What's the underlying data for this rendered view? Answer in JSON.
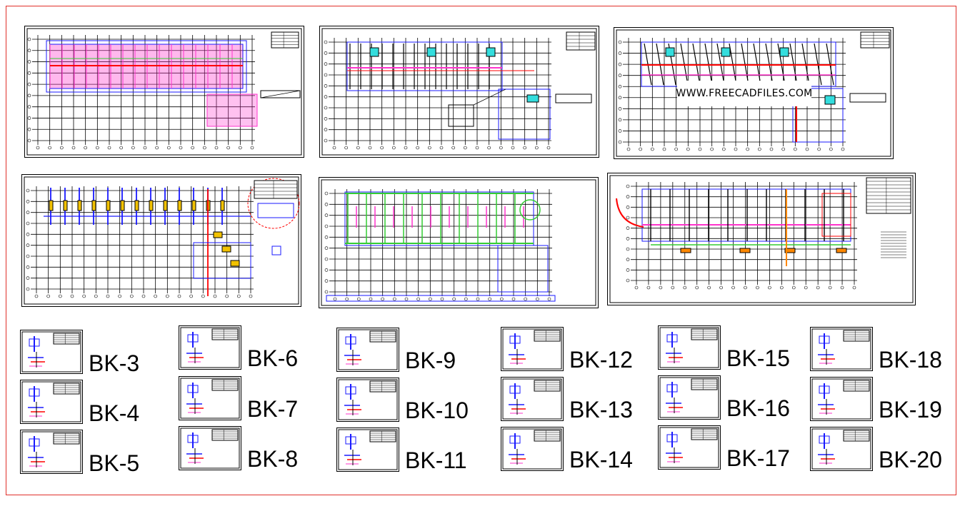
{
  "watermark": "WWW.FREECADFILES.COM",
  "colors": {
    "frame": "#e0302a",
    "grid": "#000000",
    "blue": "#1a1aff",
    "magenta": "#ff33cc",
    "red": "#ff0000",
    "green": "#33cc33",
    "cyan": "#33dddd",
    "orange": "#ff8800"
  },
  "sheets": [
    {
      "id": "sheet-1",
      "style": "pink-fill"
    },
    {
      "id": "sheet-2",
      "style": "cyan-blocks"
    },
    {
      "id": "sheet-3",
      "style": "cyan-blocks-red"
    },
    {
      "id": "sheet-4",
      "style": "columns-yellow"
    },
    {
      "id": "sheet-5",
      "style": "green-outline"
    },
    {
      "id": "sheet-6",
      "style": "blue-orange"
    }
  ],
  "details": [
    {
      "label": "BK-3"
    },
    {
      "label": "BK-4"
    },
    {
      "label": "BK-5"
    },
    {
      "label": "BK-6"
    },
    {
      "label": "BK-7"
    },
    {
      "label": "BK-8"
    },
    {
      "label": "BK-9"
    },
    {
      "label": "BK-10"
    },
    {
      "label": "BK-11"
    },
    {
      "label": "BK-12"
    },
    {
      "label": "BK-13"
    },
    {
      "label": "BK-14"
    },
    {
      "label": "BK-15"
    },
    {
      "label": "BK-16"
    },
    {
      "label": "BK-17"
    },
    {
      "label": "BK-18"
    },
    {
      "label": "BK-19"
    },
    {
      "label": "BK-20"
    }
  ]
}
